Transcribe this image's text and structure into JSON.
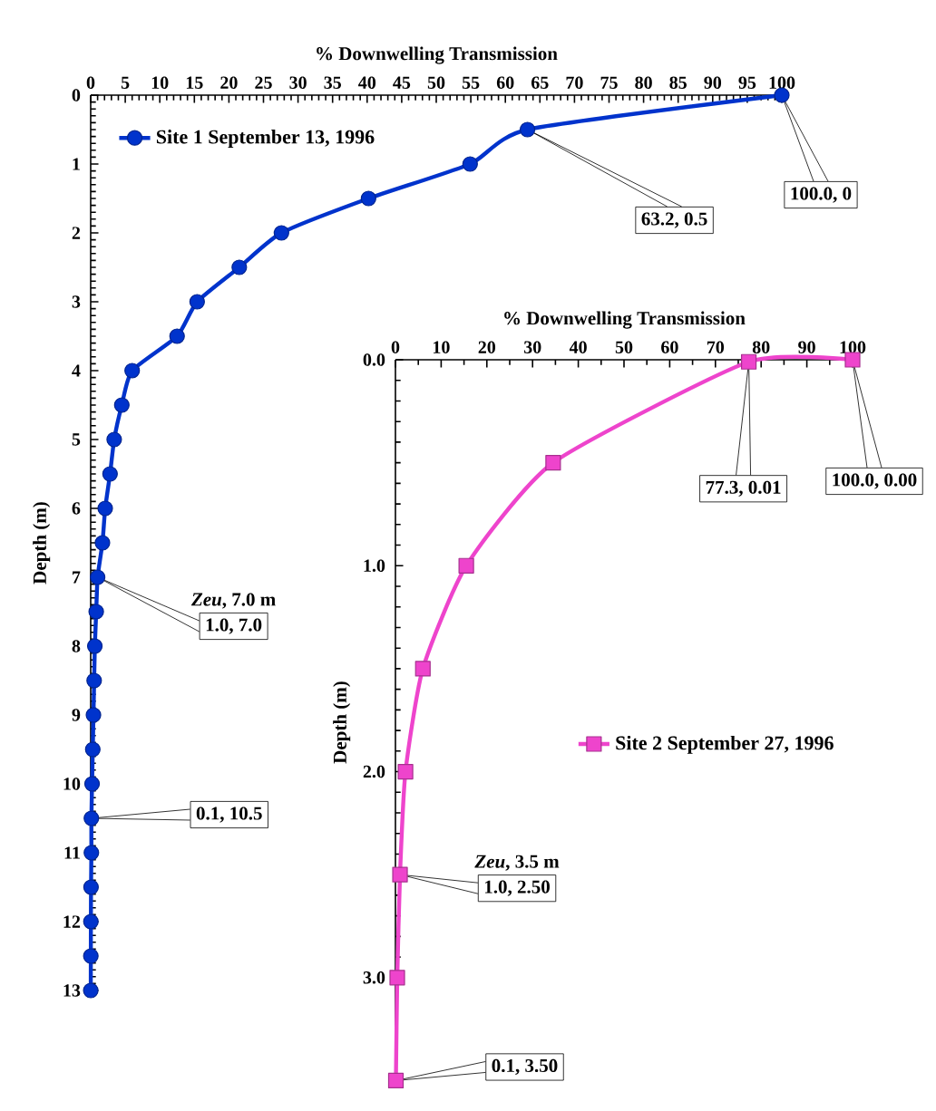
{
  "chart_data": [
    {
      "type": "line",
      "xlabel": "% Downwelling Transmission",
      "ylabel": "Depth (m)",
      "xlim": [
        0,
        100
      ],
      "xticks": [
        0,
        5,
        10,
        15,
        20,
        25,
        30,
        35,
        40,
        45,
        50,
        55,
        60,
        65,
        70,
        75,
        80,
        85,
        90,
        95,
        100
      ],
      "ylim": [
        13,
        0
      ],
      "yticks": [
        0,
        1,
        2,
        3,
        4,
        5,
        6,
        7,
        8,
        9,
        10,
        11,
        12,
        13
      ],
      "legend": "top left",
      "marker": "circle",
      "line_style": "solid",
      "series": [
        {
          "name": "Site 1 September 13, 1996",
          "color": "#0033cc",
          "x": [
            100,
            63.2,
            54.9,
            40.2,
            27.6,
            21.5,
            15.4,
            12.5,
            6.0,
            4.5,
            3.4,
            2.8,
            2.1,
            1.7,
            1.0,
            0.8,
            0.6,
            0.5,
            0.4,
            0.3,
            0.2,
            0.1,
            0.1,
            0.05,
            0.03,
            0.02,
            0.01
          ],
          "values": [
            0,
            0.5,
            1.0,
            1.5,
            2.0,
            2.5,
            3.0,
            3.5,
            4.0,
            4.5,
            5.0,
            5.5,
            6.0,
            6.5,
            7.0,
            7.5,
            8.0,
            8.5,
            9.0,
            9.5,
            10.0,
            10.5,
            11.0,
            11.5,
            12.0,
            12.5,
            13.0
          ]
        }
      ],
      "annotations": [
        "100.0, 0",
        "63.2, 0.5",
        "1.0, 7.0",
        "*Zeu*, 7.0 m",
        "0.1, 10.5"
      ]
    },
    {
      "type": "line",
      "xlabel": "% Downwelling Transmission",
      "ylabel": "Depth (m)",
      "xlim": [
        0,
        100
      ],
      "xticks": [
        0,
        10,
        20,
        30,
        40,
        50,
        60,
        70,
        80,
        90,
        100
      ],
      "ylim": [
        3.52,
        0
      ],
      "yticks": [
        {
          "value": 0,
          "label": "0.0"
        },
        {
          "value": 1,
          "label": "1.0"
        },
        {
          "value": 2,
          "label": "2.0"
        },
        {
          "value": 3,
          "label": "3.0"
        }
      ],
      "legend": "right",
      "marker": "square",
      "line_style": "solid",
      "series": [
        {
          "name": "Site 2 September 27, 1996",
          "color": "#ee44cc",
          "x": [
            100,
            77.3,
            34.5,
            15.5,
            6.0,
            2.2,
            1.0,
            0.4,
            0.1
          ],
          "values": [
            0,
            0.01,
            0.5,
            1.0,
            1.5,
            2.0,
            2.5,
            3.0,
            3.5
          ]
        }
      ],
      "annotations": [
        "77.3, 0.01",
        "100.0, 0.00",
        "1.0, 2.50",
        "*Zeu*, 3.5 m",
        "0.1, 3.50"
      ]
    }
  ]
}
